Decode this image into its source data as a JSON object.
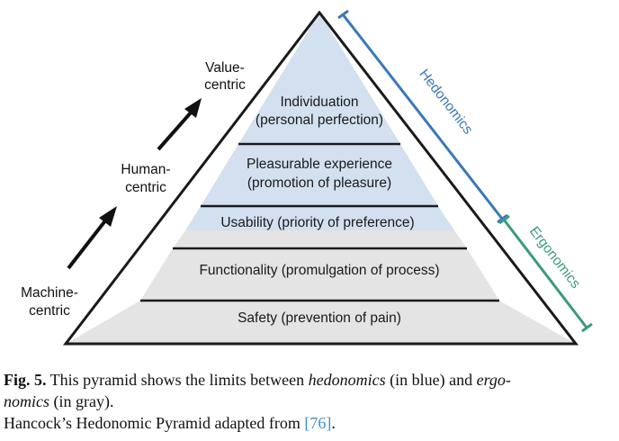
{
  "pyramid": {
    "levels": [
      {
        "line1": "Individuation",
        "line2": "(personal perfection)",
        "group": "hedonomics"
      },
      {
        "line1": "Pleasurable experience",
        "line2": "(promotion of pleasure)",
        "group": "hedonomics"
      },
      {
        "line1": "Usability (priority of preference)",
        "line2": "",
        "group": "both"
      },
      {
        "line1": "Functionality (promulgation of process)",
        "line2": "",
        "group": "ergonomics"
      },
      {
        "line1": "Safety (prevention of pain)",
        "line2": "",
        "group": "ergonomics"
      }
    ],
    "colors": {
      "hedonomics_fill": "#d3e0ef",
      "ergonomics_fill": "#e4e4e4",
      "outline": "#1a1a1a"
    }
  },
  "side_labels": {
    "value": [
      "Value-",
      "centric"
    ],
    "human": [
      "Human-",
      "centric"
    ],
    "machine": [
      "Machine-",
      "centric"
    ]
  },
  "brackets": {
    "hedonomics": {
      "label": "Hedonomics",
      "color": "#3a78b8"
    },
    "ergonomics": {
      "label": "Ergonomics",
      "color": "#3a9a80"
    }
  },
  "caption": {
    "fig_label": "Fig. 5.",
    "line1_a": " This pyramid shows the limits between ",
    "line1_b": "hedonomics",
    "line1_c": " (in blue) and ",
    "line1_d": "ergo-",
    "line2_a": "nomics",
    "line2_b": " (in gray).",
    "line3_a": "Hancock’s Hedonomic Pyramid adapted from ",
    "line3_cite": "[76]",
    "line3_b": "."
  }
}
